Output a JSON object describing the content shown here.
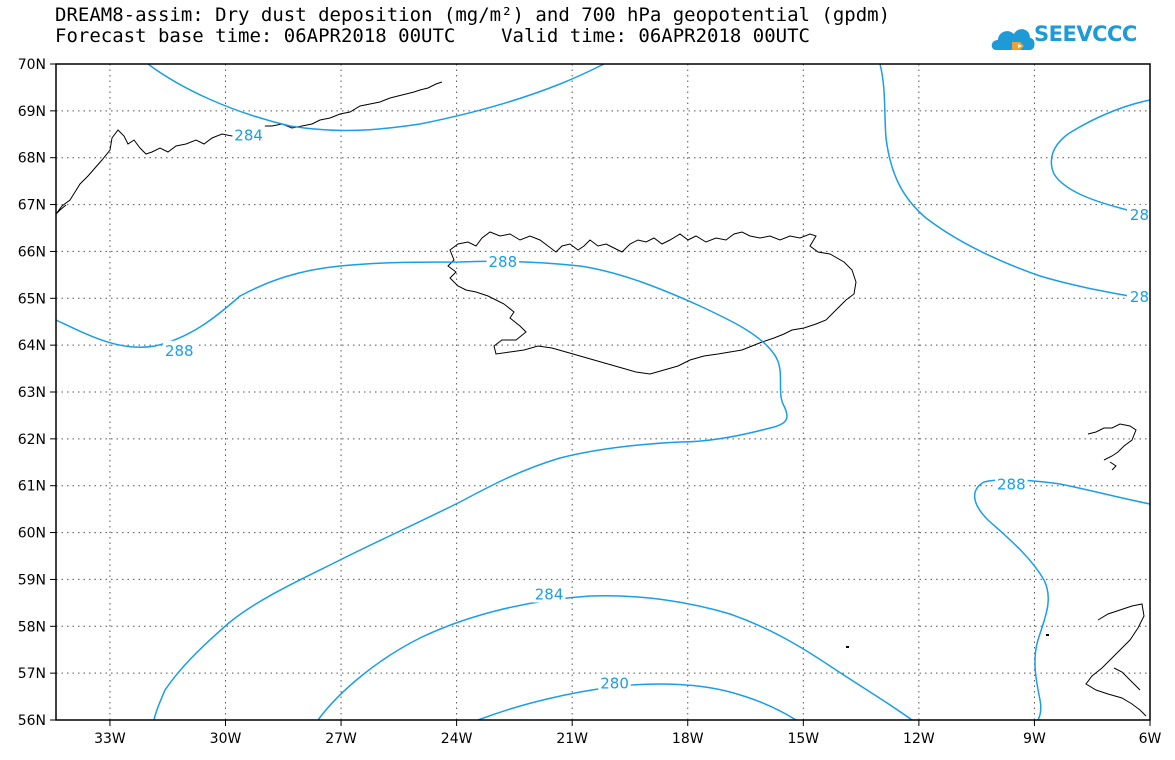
{
  "header": {
    "title_line1": "DREAM8-assim: Dry dust deposition (mg/m²) and 700 hPa geopotential (gpdm)",
    "title_line2": "Forecast base time: 06APR2018 00UTC    Valid time: 06APR2018 00UTC"
  },
  "logo": {
    "text": "SEEVCCC",
    "icon": "cloud-logo-icon",
    "color": "#1e9ad6"
  },
  "map": {
    "lon_labels": [
      "33W",
      "30W",
      "27W",
      "24W",
      "21W",
      "18W",
      "15W",
      "12W",
      "9W",
      "6W"
    ],
    "lat_labels": [
      "70N",
      "69N",
      "68N",
      "67N",
      "66N",
      "65N",
      "64N",
      "63N",
      "62N",
      "61N",
      "60N",
      "59N",
      "58N",
      "57N",
      "56N"
    ],
    "contour_color": "#1a9ee8",
    "contour_labels": [
      {
        "text": "284",
        "lon": -29.4,
        "lat": 68.5
      },
      {
        "text": "288",
        "lon": -22.8,
        "lat": 65.8
      },
      {
        "text": "288",
        "lon": -31.2,
        "lat": 63.9
      },
      {
        "text": "284",
        "lon": -21.6,
        "lat": 58.7
      },
      {
        "text": "280",
        "lon": -19.9,
        "lat": 56.8
      },
      {
        "text": "288",
        "lon": -9.6,
        "lat": 61.05
      },
      {
        "text": "28",
        "lon": -6.0,
        "lat": 66.8
      },
      {
        "text": "28",
        "lon": -6.0,
        "lat": 65.05
      }
    ]
  }
}
